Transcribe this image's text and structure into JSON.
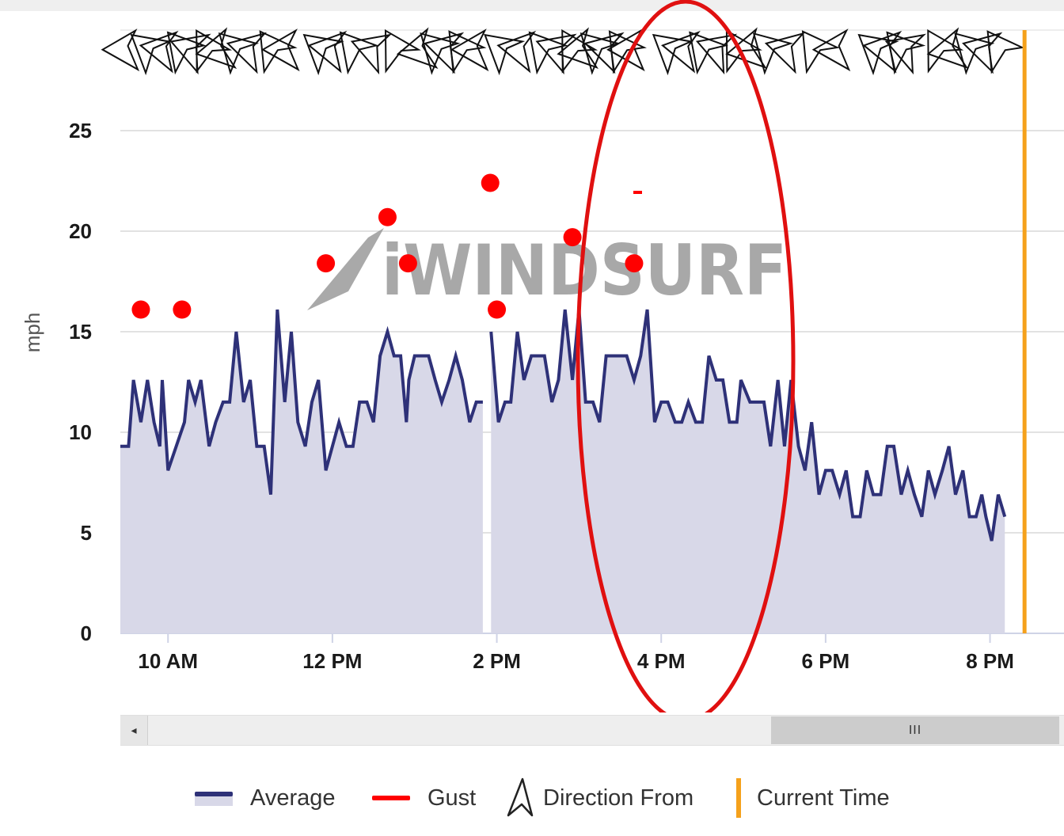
{
  "chart_data": {
    "type": "line",
    "ylabel": "mph",
    "xlabel": "",
    "ylim": [
      0,
      25
    ],
    "yticks": [
      0,
      5,
      10,
      15,
      20,
      25
    ],
    "x_ticks": [
      {
        "label": "10 AM",
        "hour": 10
      },
      {
        "label": "12 PM",
        "hour": 12
      },
      {
        "label": "2 PM",
        "hour": 14
      },
      {
        "label": "4 PM",
        "hour": 16
      },
      {
        "label": "6 PM",
        "hour": 18
      },
      {
        "label": "8 PM",
        "hour": 20
      }
    ],
    "xlim_hours": [
      9.42,
      20.9
    ],
    "grid": true,
    "legend_position": "bottom",
    "current_time_hour": 20.42,
    "series": [
      {
        "name": "Average",
        "color": "#2e3178",
        "fill": "#d8d8e8",
        "segments": [
          [
            [
              9.42,
              9.3
            ],
            [
              9.52,
              9.3
            ],
            [
              9.58,
              12.6
            ],
            [
              9.67,
              10.5
            ],
            [
              9.75,
              12.6
            ],
            [
              9.83,
              10.5
            ],
            [
              9.9,
              9.3
            ],
            [
              9.93,
              12.6
            ],
            [
              10.0,
              8.1
            ],
            [
              10.1,
              9.3
            ],
            [
              10.2,
              10.5
            ],
            [
              10.25,
              12.6
            ],
            [
              10.33,
              11.5
            ],
            [
              10.4,
              12.6
            ],
            [
              10.5,
              9.3
            ],
            [
              10.58,
              10.5
            ],
            [
              10.67,
              11.5
            ],
            [
              10.75,
              11.5
            ],
            [
              10.83,
              15.0
            ],
            [
              10.92,
              11.5
            ],
            [
              11.0,
              12.6
            ],
            [
              11.08,
              9.3
            ],
            [
              11.17,
              9.3
            ],
            [
              11.25,
              6.9
            ],
            [
              11.33,
              16.1
            ],
            [
              11.42,
              11.5
            ],
            [
              11.5,
              15.0
            ],
            [
              11.58,
              10.5
            ],
            [
              11.67,
              9.3
            ],
            [
              11.75,
              11.5
            ],
            [
              11.83,
              12.6
            ],
            [
              11.92,
              8.1
            ],
            [
              12.0,
              9.3
            ],
            [
              12.08,
              10.5
            ],
            [
              12.17,
              9.3
            ],
            [
              12.25,
              9.3
            ],
            [
              12.33,
              11.5
            ],
            [
              12.42,
              11.5
            ],
            [
              12.5,
              10.5
            ],
            [
              12.58,
              13.8
            ],
            [
              12.67,
              15.0
            ],
            [
              12.75,
              13.8
            ],
            [
              12.83,
              13.8
            ],
            [
              12.9,
              10.5
            ],
            [
              12.93,
              12.6
            ],
            [
              13.0,
              13.8
            ],
            [
              13.08,
              13.8
            ],
            [
              13.17,
              13.8
            ],
            [
              13.25,
              12.6
            ],
            [
              13.33,
              11.5
            ],
            [
              13.42,
              12.6
            ],
            [
              13.5,
              13.8
            ],
            [
              13.58,
              12.6
            ],
            [
              13.67,
              10.5
            ],
            [
              13.75,
              11.5
            ],
            [
              13.83,
              11.5
            ]
          ],
          [
            [
              13.93,
              15.0
            ],
            [
              14.02,
              10.5
            ],
            [
              14.1,
              11.5
            ],
            [
              14.17,
              11.5
            ],
            [
              14.25,
              15.0
            ],
            [
              14.33,
              12.6
            ],
            [
              14.42,
              13.8
            ],
            [
              14.5,
              13.8
            ],
            [
              14.58,
              13.8
            ],
            [
              14.67,
              11.5
            ],
            [
              14.75,
              12.6
            ],
            [
              14.83,
              16.1
            ],
            [
              14.92,
              12.6
            ],
            [
              15.0,
              16.1
            ],
            [
              15.08,
              11.5
            ],
            [
              15.17,
              11.5
            ],
            [
              15.25,
              10.5
            ],
            [
              15.33,
              13.8
            ],
            [
              15.42,
              13.8
            ],
            [
              15.5,
              13.8
            ],
            [
              15.58,
              13.8
            ],
            [
              15.67,
              12.6
            ],
            [
              15.75,
              13.8
            ],
            [
              15.83,
              16.1
            ],
            [
              15.92,
              10.5
            ],
            [
              16.0,
              11.5
            ],
            [
              16.08,
              11.5
            ],
            [
              16.17,
              10.5
            ],
            [
              16.25,
              10.5
            ],
            [
              16.33,
              11.5
            ],
            [
              16.42,
              10.5
            ],
            [
              16.5,
              10.5
            ],
            [
              16.58,
              13.8
            ],
            [
              16.67,
              12.6
            ],
            [
              16.75,
              12.6
            ],
            [
              16.83,
              10.5
            ],
            [
              16.92,
              10.5
            ],
            [
              16.97,
              12.6
            ],
            [
              17.08,
              11.5
            ],
            [
              17.17,
              11.5
            ],
            [
              17.25,
              11.5
            ],
            [
              17.33,
              9.3
            ],
            [
              17.42,
              12.6
            ],
            [
              17.5,
              9.3
            ],
            [
              17.58,
              12.6
            ],
            [
              17.67,
              9.3
            ],
            [
              17.75,
              8.1
            ],
            [
              17.83,
              10.5
            ],
            [
              17.92,
              6.9
            ],
            [
              18.0,
              8.1
            ],
            [
              18.08,
              8.1
            ],
            [
              18.17,
              6.9
            ],
            [
              18.25,
              8.1
            ],
            [
              18.33,
              5.8
            ],
            [
              18.42,
              5.8
            ],
            [
              18.5,
              8.1
            ],
            [
              18.58,
              6.9
            ],
            [
              18.67,
              6.9
            ],
            [
              18.75,
              9.3
            ],
            [
              18.83,
              9.3
            ],
            [
              18.92,
              6.9
            ],
            [
              19.0,
              8.1
            ],
            [
              19.08,
              6.9
            ],
            [
              19.17,
              5.8
            ],
            [
              19.25,
              8.1
            ],
            [
              19.33,
              6.9
            ],
            [
              19.42,
              8.1
            ],
            [
              19.5,
              9.3
            ],
            [
              19.58,
              6.9
            ],
            [
              19.67,
              8.1
            ],
            [
              19.75,
              5.8
            ],
            [
              19.83,
              5.8
            ],
            [
              19.9,
              6.9
            ],
            [
              19.95,
              5.8
            ],
            [
              20.02,
              4.6
            ],
            [
              20.1,
              6.9
            ],
            [
              20.18,
              5.8
            ]
          ]
        ]
      },
      {
        "name": "Gust",
        "color": "#ff0000",
        "points": [
          [
            9.67,
            16.1
          ],
          [
            10.17,
            16.1
          ],
          [
            11.92,
            18.4
          ],
          [
            12.67,
            20.7
          ],
          [
            12.92,
            18.4
          ],
          [
            13.92,
            22.4
          ],
          [
            14.0,
            16.1
          ],
          [
            14.92,
            19.7
          ],
          [
            15.67,
            18.4
          ]
        ]
      }
    ],
    "direction_arrows_hours": [
      9.5,
      9.75,
      9.95,
      10.15,
      10.3,
      10.45,
      10.65,
      10.8,
      11.0,
      11.25,
      11.45,
      11.85,
      12.0,
      12.25,
      12.5,
      12.75,
      13.1,
      13.25,
      13.4,
      13.55,
      13.75,
      14.05,
      14.3,
      14.55,
      14.75,
      14.9,
      15.05,
      15.2,
      15.35,
      15.5,
      15.65,
      16.1,
      16.3,
      16.5,
      16.7,
      16.9,
      17.1,
      17.3,
      17.55,
      17.85,
      18.15,
      18.6,
      18.75,
      18.9,
      19.0,
      19.35,
      19.55,
      19.75,
      19.95,
      20.1
    ]
  },
  "legend": {
    "items": [
      {
        "label": "Average",
        "color": "#2e3178"
      },
      {
        "label": "Gust",
        "color": "#ff0000"
      },
      {
        "label": "Direction From",
        "color": "#222222"
      },
      {
        "label": "Current Time",
        "color": "#f5a11b"
      }
    ]
  },
  "scrollbar": {
    "thumb_grip": "III",
    "left_arrow": "◂"
  },
  "colors": {
    "current_time": "#f5a11b",
    "highlight_ellipse": "#e01010",
    "watermark": "#9a9a9a",
    "grid": "#d8d8d8"
  },
  "watermark": {
    "text": "iWINDSURF"
  }
}
